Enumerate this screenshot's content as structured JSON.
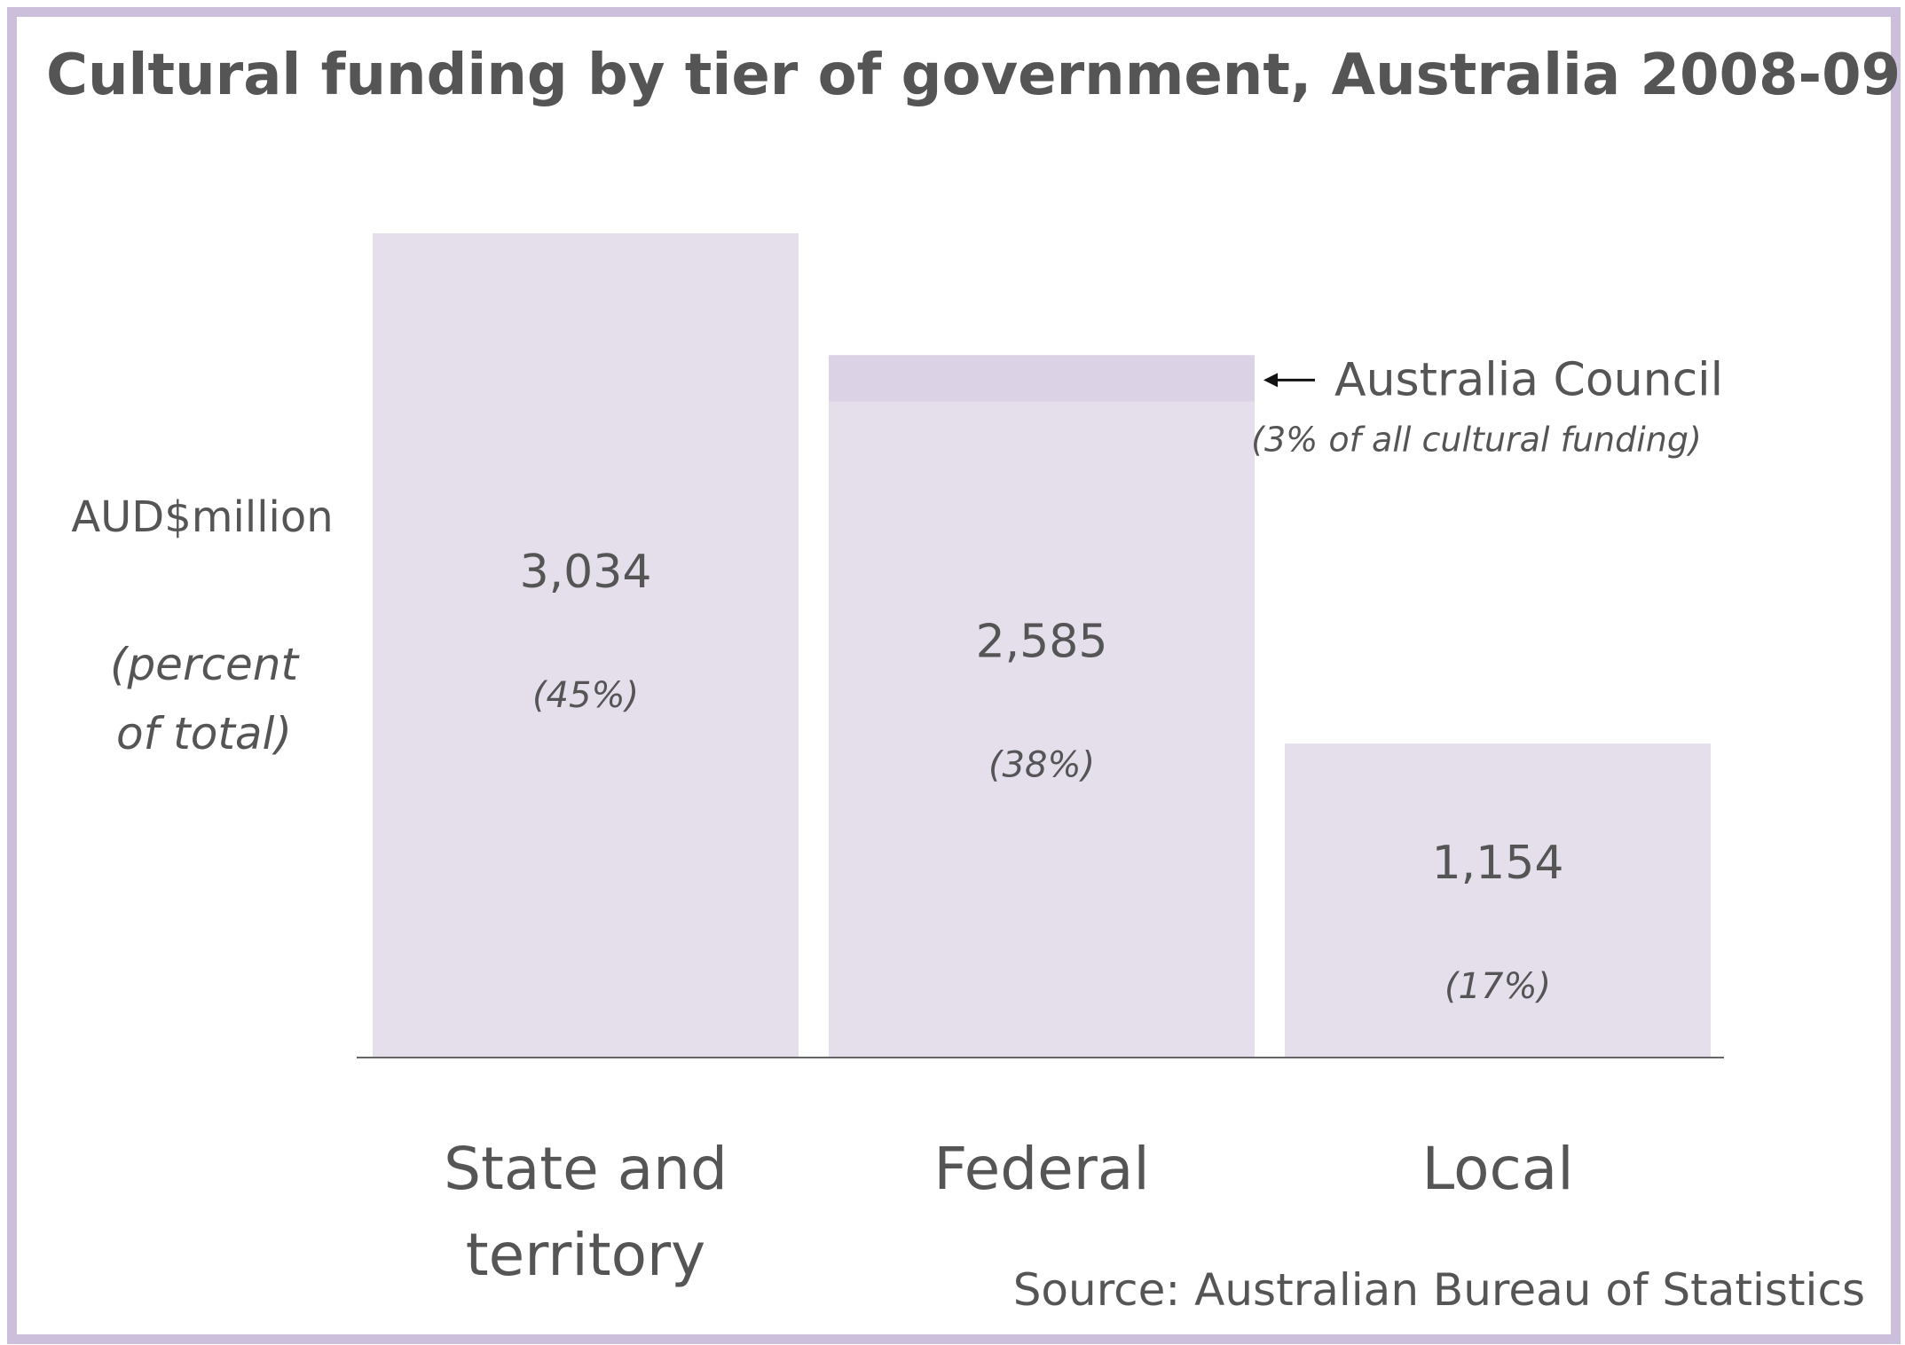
{
  "chart_data": {
    "type": "bar",
    "title": "Cultural funding by tier of government, Australia 2008-09",
    "ylabel": "AUD$million",
    "ylabel_sub": "(percent of total)",
    "categories": [
      "State and territory",
      "Federal",
      "Local"
    ],
    "values": [
      3034,
      2585,
      1154
    ],
    "value_labels": [
      "3,034",
      "2,585",
      "1,154"
    ],
    "percent_labels": [
      "(45%)",
      "(38%)",
      "(17%)"
    ],
    "ylim": [
      0,
      3034
    ],
    "grid": false,
    "annotation": {
      "category": "Federal",
      "label": "Australia Council",
      "sublabel": "(3% of all cultural funding)"
    },
    "source": "Source: Australian Bureau of Statistics",
    "colors": {
      "bar": "#e4dfeb",
      "highlight": "#dbd3e5",
      "frame": "#cbbfdb",
      "text": "#555555",
      "axis": "#666666"
    }
  }
}
